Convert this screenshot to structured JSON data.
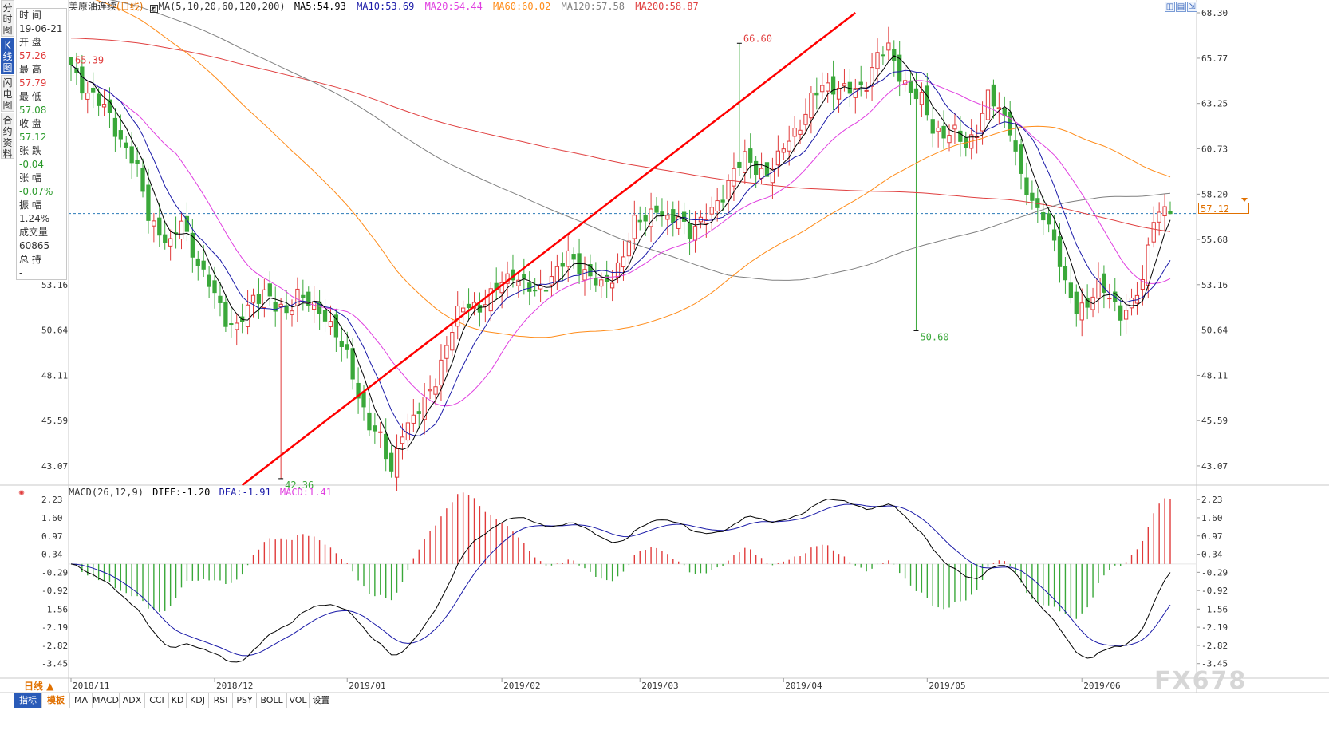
{
  "header": {
    "symbol": "美原油连续",
    "period_tag": "(日线)",
    "ma_params": "MA(5,10,20,60,120,200)",
    "ma5": "MA5:54.93",
    "ma10": "MA10:53.69",
    "ma20": "MA20:54.44",
    "ma60": "MA60:60.02",
    "ma120": "MA120:57.58",
    "ma200": "MA200:58.87",
    "colors": {
      "ma5": "#000000",
      "ma10": "#1a1aa8",
      "ma20": "#e040e0",
      "ma60": "#ff8c1a",
      "ma120": "#808080",
      "ma200": "#e04040",
      "up": "#e03a3a",
      "down": "#3aa83a",
      "trend": "#ff0000"
    }
  },
  "macd_header": {
    "params": "MACD(26,12,9)",
    "diff": "DIFF:-1.20",
    "dea": "DEA:-1.91",
    "macd": "MACD:1.41"
  },
  "tabs": [
    "分时图",
    "K线图",
    "闪电图",
    "合约资料"
  ],
  "active_tab": 1,
  "info": [
    {
      "label": "时 间",
      "value": "19-06-21",
      "color": "normal"
    },
    {
      "label": "开 盘",
      "value": "57.26",
      "color": "red"
    },
    {
      "label": "最 高",
      "value": "57.79",
      "color": "red"
    },
    {
      "label": "最 低",
      "value": "57.08",
      "color": "green"
    },
    {
      "label": "收 盘",
      "value": "57.12",
      "color": "green"
    },
    {
      "label": "张 跌",
      "value": "-0.04",
      "color": "green"
    },
    {
      "label": "张 幅",
      "value": "-0.07%",
      "color": "green"
    },
    {
      "label": "振 幅",
      "value": "1.24%",
      "color": "normal"
    },
    {
      "label": "成交量",
      "value": "60865",
      "color": "normal"
    },
    {
      "label": "总 持",
      "value": "-",
      "color": "normal"
    }
  ],
  "current_price": "57.12",
  "period_button": "日线 ▲",
  "toolbar": [
    "指标",
    "模板",
    "MA",
    "MACD",
    "ADX",
    "CCI",
    "KD",
    "KDJ",
    "RSI",
    "PSY",
    "BOLL",
    "VOL",
    "设置"
  ],
  "watermark": "FX678",
  "chart_data": {
    "type": "candlestick",
    "price_axis": {
      "ticks": [
        "68.30",
        "65.77",
        "63.25",
        "60.73",
        "58.20",
        "55.68",
        "53.16",
        "50.64",
        "48.11",
        "45.59",
        "43.07"
      ],
      "range": [
        42.0,
        68.3
      ]
    },
    "macd_axis": {
      "ticks": [
        "2.23",
        "1.60",
        "0.97",
        "0.34",
        "-0.29",
        "-0.92",
        "-1.56",
        "-2.19",
        "-2.82",
        "-3.45"
      ],
      "range": [
        -3.9,
        2.4
      ]
    },
    "x_labels": [
      "2018/11",
      "2018/12",
      "2019/01",
      "2019/02",
      "2019/03",
      "2019/04",
      "2019/05",
      "2019/06"
    ],
    "annotations": [
      {
        "text": "65.39",
        "value": 65.39,
        "index": 0,
        "color": "red"
      },
      {
        "text": "42.36",
        "value": 42.36,
        "index": 38,
        "color": "green"
      },
      {
        "text": "66.60",
        "value": 66.6,
        "index": 121,
        "color": "red"
      },
      {
        "text": "50.60",
        "value": 50.6,
        "index": 153,
        "color": "green"
      }
    ],
    "trendline": [
      {
        "index": 31,
        "value": 42.0
      },
      {
        "index": 142,
        "value": 68.3
      }
    ],
    "anchors": [
      [
        0,
        65.4
      ],
      [
        3,
        63.8
      ],
      [
        7,
        62.7
      ],
      [
        9,
        61.2
      ],
      [
        12,
        59.5
      ],
      [
        14,
        57.2
      ],
      [
        16,
        56.0
      ],
      [
        18,
        55.2
      ],
      [
        20,
        57.0
      ],
      [
        22,
        55.0
      ],
      [
        24,
        53.5
      ],
      [
        26,
        52.8
      ],
      [
        28,
        51.3
      ],
      [
        30,
        50.6
      ],
      [
        33,
        52.5
      ],
      [
        35,
        52.8
      ],
      [
        37,
        51.8
      ],
      [
        39,
        51.6
      ],
      [
        41,
        52.8
      ],
      [
        44,
        51.7
      ],
      [
        46,
        51.5
      ],
      [
        48,
        50.5
      ],
      [
        50,
        49.0
      ],
      [
        52,
        47.0
      ],
      [
        54,
        45.5
      ],
      [
        56,
        44.5
      ],
      [
        58,
        42.7
      ],
      [
        60,
        45.2
      ],
      [
        62,
        45.6
      ],
      [
        64,
        46.6
      ],
      [
        66,
        48.0
      ],
      [
        68,
        49.7
      ],
      [
        70,
        51.5
      ],
      [
        72,
        52.3
      ],
      [
        74,
        51.8
      ],
      [
        76,
        52.4
      ],
      [
        78,
        53.5
      ],
      [
        80,
        53.8
      ],
      [
        82,
        53.0
      ],
      [
        84,
        52.8
      ],
      [
        86,
        53.3
      ],
      [
        88,
        53.8
      ],
      [
        90,
        54.8
      ],
      [
        92,
        54.3
      ],
      [
        94,
        53.5
      ],
      [
        96,
        53.0
      ],
      [
        98,
        53.7
      ],
      [
        100,
        54.8
      ],
      [
        102,
        56.5
      ],
      [
        104,
        57.0
      ],
      [
        106,
        57.5
      ],
      [
        108,
        56.5
      ],
      [
        110,
        57.0
      ],
      [
        112,
        56.2
      ],
      [
        114,
        56.5
      ],
      [
        116,
        57.3
      ],
      [
        118,
        58.3
      ],
      [
        120,
        59.4
      ],
      [
        122,
        60.2
      ],
      [
        124,
        59.8
      ],
      [
        126,
        59.2
      ],
      [
        128,
        60.1
      ],
      [
        130,
        61.5
      ],
      [
        132,
        62.0
      ],
      [
        134,
        63.3
      ],
      [
        136,
        64.4
      ],
      [
        138,
        64.2
      ],
      [
        140,
        63.9
      ],
      [
        142,
        64.0
      ],
      [
        144,
        64.5
      ],
      [
        146,
        65.8
      ],
      [
        148,
        66.3
      ],
      [
        150,
        65.0
      ],
      [
        152,
        63.8
      ],
      [
        154,
        63.4
      ],
      [
        156,
        62.0
      ],
      [
        158,
        61.5
      ],
      [
        160,
        61.5
      ],
      [
        162,
        61.0
      ],
      [
        164,
        61.8
      ],
      [
        166,
        63.5
      ],
      [
        168,
        63.0
      ],
      [
        170,
        62.0
      ],
      [
        172,
        59.0
      ],
      [
        174,
        57.6
      ],
      [
        176,
        57.3
      ],
      [
        178,
        55.5
      ],
      [
        180,
        53.0
      ],
      [
        182,
        52.0
      ],
      [
        184,
        52.0
      ],
      [
        186,
        53.0
      ],
      [
        188,
        52.7
      ],
      [
        190,
        51.5
      ],
      [
        192,
        51.9
      ],
      [
        194,
        53.5
      ],
      [
        196,
        57.1
      ]
    ],
    "ma_start_values": {
      "ma60": 69.5,
      "ma120": 69.4,
      "ma200": 66.9
    }
  }
}
